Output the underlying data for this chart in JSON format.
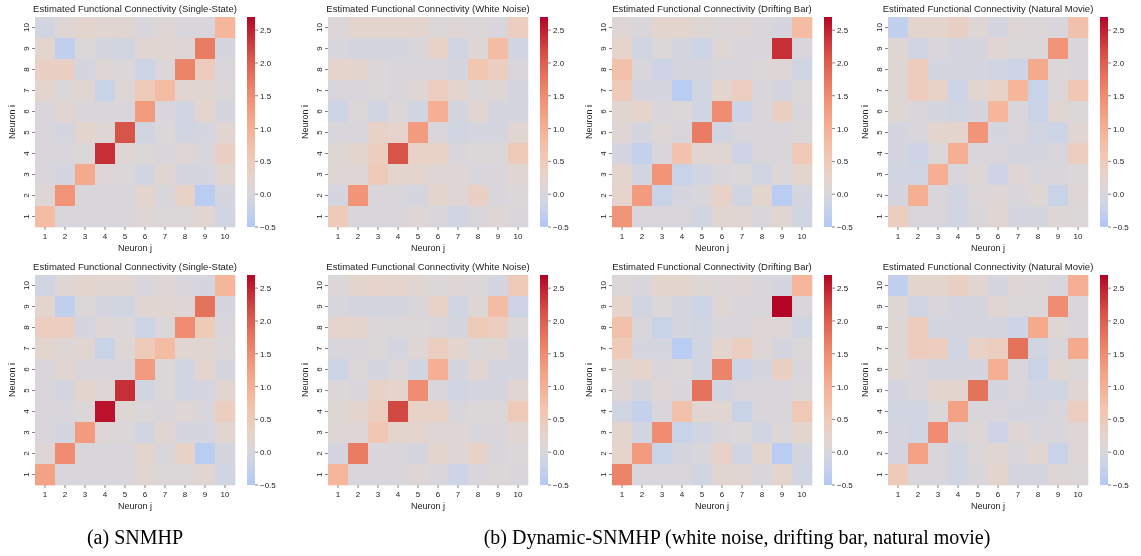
{
  "chart_data": [
    {
      "type": "heatmap",
      "title": "Estimated Functional Connectivity (Single-State)",
      "xlabel": "Neuron j",
      "ylabel": "Neuron i",
      "categories": [
        "1",
        "2",
        "3",
        "4",
        "5",
        "6",
        "7",
        "8",
        "9",
        "10"
      ],
      "y_categories": [
        "10",
        "9",
        "8",
        "7",
        "6",
        "5",
        "4",
        "3",
        "2",
        "1"
      ],
      "clim": [
        -0.5,
        2.7
      ],
      "cticks": [
        {
          "value": -0.5,
          "label": "−0.5"
        },
        {
          "value": 0,
          "label": "0.0"
        },
        0.5,
        {
          "value": 1,
          "label": "1.0"
        },
        1.5,
        {
          "value": 2,
          "label": "2.0"
        },
        2.5
      ],
      "cells": [
        [
          -0.1,
          0.1,
          0.2,
          0.15,
          0.15,
          0,
          0.1,
          0,
          0,
          0.9
        ],
        [
          0.2,
          -0.3,
          0.05,
          -0.05,
          -0.1,
          0.15,
          0.15,
          0.1,
          1.7,
          -0.05
        ],
        [
          0.35,
          0.35,
          -0.05,
          0.1,
          0.05,
          -0.15,
          0.05,
          1.6,
          0.45,
          0
        ],
        [
          0.2,
          0.05,
          0.15,
          -0.2,
          0.1,
          0.5,
          0.8,
          0.15,
          0.15,
          0.05
        ],
        [
          0,
          0.15,
          0,
          0,
          0,
          1.3,
          0,
          -0.1,
          0.2,
          -0.05
        ],
        [
          0,
          -0.05,
          0.2,
          0.1,
          2.1,
          -0.1,
          0.05,
          -0.1,
          -0.05,
          0.15
        ],
        [
          0,
          0,
          0.05,
          2.4,
          0.1,
          0.05,
          0,
          0.1,
          0,
          0.35
        ],
        [
          0,
          -0.05,
          1.1,
          0.1,
          0.05,
          -0.1,
          0.15,
          -0.05,
          -0.05,
          0.15
        ],
        [
          0.1,
          1.4,
          0,
          0,
          0,
          0.2,
          0,
          0.3,
          -0.4,
          -0.05
        ],
        [
          0.8,
          0,
          0,
          0,
          0,
          0.1,
          0.05,
          0.05,
          0.15,
          -0.1
        ]
      ]
    },
    {
      "type": "heatmap",
      "title": "Estimated Functional Connectivity (White Noise)",
      "xlabel": "Neuron j",
      "ylabel": "Neuron i",
      "categories": [
        "1",
        "2",
        "3",
        "4",
        "5",
        "6",
        "7",
        "8",
        "9",
        "10"
      ],
      "y_categories": [
        "10",
        "9",
        "8",
        "7",
        "6",
        "5",
        "4",
        "3",
        "2",
        "1"
      ],
      "clim": [
        -0.5,
        2.7
      ],
      "cticks": [
        {
          "value": -0.5,
          "label": "−0.5"
        },
        {
          "value": 0,
          "label": "0.0"
        },
        0.5,
        {
          "value": 1,
          "label": "1.0"
        },
        1.5,
        {
          "value": 2,
          "label": "2.0"
        },
        2.5
      ],
      "cells": [
        [
          0.05,
          0.2,
          0.2,
          0.2,
          0.2,
          0.05,
          0.1,
          0.05,
          0,
          0.4
        ],
        [
          0,
          -0.05,
          -0.05,
          -0.05,
          0,
          0.3,
          -0.1,
          0.1,
          0.8,
          -0.1
        ],
        [
          0.25,
          0.2,
          0.05,
          0,
          0,
          0,
          -0.05,
          0.6,
          0.4,
          0
        ],
        [
          0,
          0,
          0.05,
          0,
          0.1,
          0.4,
          0.2,
          0.05,
          0.1,
          -0.05
        ],
        [
          -0.15,
          0.05,
          -0.1,
          0.05,
          -0.1,
          1,
          -0.05,
          0.15,
          -0.05,
          -0.05
        ],
        [
          0,
          0,
          0.3,
          0.25,
          1.3,
          0,
          -0.1,
          -0.05,
          -0.05,
          0.15
        ],
        [
          0.1,
          0.2,
          0.4,
          2.1,
          0.3,
          0.3,
          0,
          0.05,
          0.05,
          0.5
        ],
        [
          0.1,
          0.1,
          0.5,
          0.2,
          0.2,
          0.1,
          0.1,
          0,
          0,
          0.15
        ],
        [
          -0.05,
          1.4,
          0,
          0,
          -0.05,
          0.2,
          0.1,
          0.35,
          0,
          0.05
        ],
        [
          0.5,
          0,
          0,
          0,
          0.1,
          0,
          -0.1,
          0,
          0.1,
          0
        ]
      ]
    },
    {
      "type": "heatmap",
      "title": "Estimated Functional Connectivity (Drifting Bar)",
      "xlabel": "Neuron j",
      "ylabel": "Neuron i",
      "categories": [
        "1",
        "2",
        "3",
        "4",
        "5",
        "6",
        "7",
        "8",
        "9",
        "10"
      ],
      "y_categories": [
        "10",
        "9",
        "8",
        "7",
        "6",
        "5",
        "4",
        "3",
        "2",
        "1"
      ],
      "clim": [
        -0.5,
        2.7
      ],
      "cticks": [
        {
          "value": -0.5,
          "label": "−0.5"
        },
        {
          "value": 0,
          "label": "0.0"
        },
        0.5,
        {
          "value": 1,
          "label": "1.0"
        },
        1.5,
        {
          "value": 2,
          "label": "2.0"
        },
        2.5
      ],
      "cells": [
        [
          0.1,
          0,
          0.2,
          0.2,
          0.1,
          0.05,
          0.1,
          0,
          -0.05,
          0.8
        ],
        [
          0.25,
          -0.1,
          0.05,
          -0.05,
          -0.15,
          0.1,
          0,
          0,
          2.4,
          0
        ],
        [
          0.7,
          0,
          -0.15,
          -0.05,
          -0.05,
          0,
          0,
          0.05,
          0.1,
          -0.1
        ],
        [
          0.5,
          -0.05,
          -0.05,
          -0.4,
          -0.1,
          0.2,
          0.4,
          0,
          -0.05,
          0.05
        ],
        [
          0.15,
          0.25,
          0,
          0.05,
          -0.1,
          1.5,
          -0.15,
          0,
          0.35,
          0
        ],
        [
          0.1,
          -0.05,
          0.1,
          0,
          1.7,
          -0.1,
          0,
          0,
          0,
          0.05
        ],
        [
          -0.05,
          -0.25,
          0,
          0.65,
          0.15,
          0.15,
          -0.15,
          0,
          0,
          0.55
        ],
        [
          0.2,
          -0.1,
          1.4,
          -0.2,
          -0.1,
          0,
          0.05,
          -0.1,
          0.05,
          0.2
        ],
        [
          0.25,
          1.3,
          -0.2,
          -0.05,
          0,
          0.3,
          -0.1,
          0.2,
          -0.4,
          -0.05
        ],
        [
          1.4,
          0,
          0,
          0,
          -0.1,
          0.15,
          0.15,
          0,
          0.15,
          -0.1
        ]
      ]
    },
    {
      "type": "heatmap",
      "title": "Estimated Functional Connectivity (Natural Movie)",
      "xlabel": "Neuron j",
      "ylabel": "Neuron i",
      "categories": [
        "1",
        "2",
        "3",
        "4",
        "5",
        "6",
        "7",
        "8",
        "9",
        "10"
      ],
      "y_categories": [
        "10",
        "9",
        "8",
        "7",
        "6",
        "5",
        "4",
        "3",
        "2",
        "1"
      ],
      "clim": [
        -0.5,
        2.7
      ],
      "cticks": [
        {
          "value": -0.5,
          "label": "−0.5"
        },
        {
          "value": 0,
          "label": "0.0"
        },
        0.5,
        {
          "value": 1,
          "label": "1.0"
        },
        1.5,
        {
          "value": 2,
          "label": "2.0"
        },
        2.5
      ],
      "cells": [
        [
          -0.3,
          0.2,
          0.2,
          0.35,
          0.1,
          -0.05,
          0.1,
          0.05,
          0,
          0.7
        ],
        [
          0.1,
          -0.1,
          0,
          -0.05,
          -0.05,
          0.15,
          0.05,
          0.05,
          1.4,
          0
        ],
        [
          0.1,
          0.45,
          -0.05,
          -0.05,
          -0.05,
          -0.1,
          -0.15,
          1.1,
          0.05,
          0
        ],
        [
          0.1,
          0.45,
          0.3,
          -0.15,
          0.15,
          0.3,
          0.9,
          -0.2,
          0.05,
          0.6
        ],
        [
          0.1,
          0,
          -0.05,
          -0.1,
          -0.05,
          0.9,
          0,
          -0.2,
          0.15,
          0.05
        ],
        [
          -0.05,
          0,
          0.2,
          0.2,
          1.4,
          -0.05,
          0,
          -0.1,
          -0.15,
          0.15
        ],
        [
          -0.05,
          -0.15,
          0.05,
          1,
          0,
          0,
          -0.05,
          -0.05,
          0,
          0.4
        ],
        [
          -0.1,
          -0.1,
          1,
          0,
          0.1,
          -0.15,
          0.1,
          0,
          0,
          0.05
        ],
        [
          -0.05,
          1,
          0,
          -0.1,
          0.05,
          0.1,
          0,
          0.1,
          -0.2,
          0.1
        ],
        [
          0.4,
          0,
          0,
          -0.1,
          0,
          0.15,
          -0.05,
          -0.05,
          0.1,
          0.05
        ]
      ]
    },
    {
      "type": "heatmap",
      "title": "Estimated Functional Connectivity (Single-State)",
      "xlabel": "Neuron j",
      "ylabel": "Neuron i",
      "categories": [
        "1",
        "2",
        "3",
        "4",
        "5",
        "6",
        "7",
        "8",
        "9",
        "10"
      ],
      "y_categories": [
        "10",
        "9",
        "8",
        "7",
        "6",
        "5",
        "4",
        "3",
        "2",
        "1"
      ],
      "clim": [
        -0.5,
        2.7
      ],
      "cticks": [
        {
          "value": -0.5,
          "label": "−0.5"
        },
        {
          "value": 0,
          "label": "0.0"
        },
        0.5,
        {
          "value": 1,
          "label": "1.0"
        },
        1.5,
        {
          "value": 2,
          "label": "2.0"
        },
        2.5
      ],
      "annotations": [
        "(a) SNMHP"
      ],
      "cells": [
        [
          -0.1,
          0.1,
          0.2,
          0.15,
          0.15,
          0,
          0.1,
          0,
          -0.05,
          0.9
        ],
        [
          0.2,
          -0.3,
          0.05,
          -0.05,
          -0.1,
          0.15,
          0.15,
          0.1,
          1.8,
          -0.05
        ],
        [
          0.4,
          0.4,
          -0.05,
          0.1,
          0.05,
          -0.15,
          0.05,
          1.5,
          0.5,
          0
        ],
        [
          0.2,
          0.1,
          0.15,
          -0.2,
          0.1,
          0.5,
          0.8,
          0.15,
          0.15,
          0.05
        ],
        [
          0,
          0.15,
          0,
          0,
          0,
          1.3,
          0.05,
          -0.1,
          0.2,
          -0.05
        ],
        [
          0,
          -0.05,
          0.2,
          0.1,
          2.4,
          -0.1,
          0.05,
          -0.1,
          -0.05,
          0.15
        ],
        [
          0,
          0,
          0.05,
          2.6,
          0.1,
          0.05,
          0,
          0.1,
          0,
          0.4
        ],
        [
          0,
          -0.05,
          1.3,
          0.1,
          0.05,
          -0.1,
          0.15,
          -0.05,
          -0.05,
          0.15
        ],
        [
          0.1,
          1.5,
          0,
          0,
          0,
          0.2,
          0,
          0.3,
          -0.4,
          -0.05
        ],
        [
          1.2,
          0,
          0,
          0,
          0,
          0.15,
          0.05,
          0.05,
          0.15,
          -0.1
        ]
      ]
    },
    {
      "type": "heatmap",
      "title": "Estimated Functional Connectivity (White Noise)",
      "xlabel": "Neuron j",
      "ylabel": "Neuron i",
      "categories": [
        "1",
        "2",
        "3",
        "4",
        "5",
        "6",
        "7",
        "8",
        "9",
        "10"
      ],
      "y_categories": [
        "10",
        "9",
        "8",
        "7",
        "6",
        "5",
        "4",
        "3",
        "2",
        "1"
      ],
      "clim": [
        -0.5,
        2.7
      ],
      "cticks": [
        {
          "value": -0.5,
          "label": "−0.5"
        },
        {
          "value": 0,
          "label": "0.0"
        },
        0.5,
        {
          "value": 1,
          "label": "1.0"
        },
        1.5,
        {
          "value": 2,
          "label": "2.0"
        },
        2.5
      ],
      "cells": [
        [
          0.05,
          0.2,
          0.25,
          0.2,
          0.15,
          0.05,
          0.1,
          0.05,
          -0.05,
          0.5
        ],
        [
          0,
          -0.05,
          -0.05,
          -0.05,
          0,
          0.3,
          -0.1,
          0.1,
          0.8,
          -0.15
        ],
        [
          0.25,
          0.2,
          0.05,
          0.05,
          0.05,
          0,
          -0.05,
          0.5,
          0.4,
          0.05
        ],
        [
          0,
          0,
          0.05,
          -0.05,
          0.1,
          0.4,
          0.2,
          0.05,
          0.1,
          -0.05
        ],
        [
          -0.15,
          0.05,
          -0.05,
          0.05,
          -0.1,
          1,
          -0.05,
          0.15,
          -0.05,
          -0.05
        ],
        [
          0.05,
          0,
          0.3,
          0.25,
          1.5,
          0,
          -0.1,
          -0.05,
          -0.05,
          0.15
        ],
        [
          0.1,
          0.2,
          0.4,
          2.2,
          0.3,
          0.3,
          0,
          0.05,
          0.05,
          0.5
        ],
        [
          0.1,
          0.1,
          0.6,
          0.2,
          0.2,
          0.1,
          0.1,
          0,
          0,
          0.15
        ],
        [
          -0.05,
          1.7,
          0,
          0,
          -0.05,
          0.2,
          0.1,
          0.3,
          0,
          0.05
        ],
        [
          0.9,
          0,
          0,
          0,
          0.1,
          0,
          -0.15,
          0,
          0.05,
          0
        ]
      ]
    },
    {
      "type": "heatmap",
      "title": "Estimated Functional Connectivity (Drifting Bar)",
      "xlabel": "Neuron j",
      "ylabel": "Neuron i",
      "categories": [
        "1",
        "2",
        "3",
        "4",
        "5",
        "6",
        "7",
        "8",
        "9",
        "10"
      ],
      "y_categories": [
        "10",
        "9",
        "8",
        "7",
        "6",
        "5",
        "4",
        "3",
        "2",
        "1"
      ],
      "clim": [
        -0.5,
        2.7
      ],
      "cticks": [
        {
          "value": -0.5,
          "label": "−0.5"
        },
        {
          "value": 0,
          "label": "0.0"
        },
        0.5,
        {
          "value": 1,
          "label": "1.0"
        },
        1.5,
        {
          "value": 2,
          "label": "2.0"
        },
        2.5
      ],
      "annotations": [
        "(b) Dynamic-SNMHP (white noise, drifting bar, natural movie)"
      ],
      "cells": [
        [
          0.05,
          0,
          0.2,
          0.2,
          0.1,
          0.05,
          0.1,
          0,
          -0.05,
          0.9
        ],
        [
          0.25,
          -0.1,
          0.05,
          -0.05,
          -0.15,
          0.1,
          0,
          0,
          2.7,
          0
        ],
        [
          0.7,
          0,
          -0.2,
          -0.05,
          -0.1,
          0,
          0,
          0.1,
          0.1,
          -0.1
        ],
        [
          0.5,
          -0.05,
          -0.05,
          -0.4,
          -0.1,
          0.2,
          0.4,
          0.1,
          -0.05,
          0.05
        ],
        [
          0.15,
          0.25,
          0,
          0.05,
          -0.1,
          1.6,
          -0.15,
          -0.05,
          0.35,
          0
        ],
        [
          0.1,
          -0.05,
          0.1,
          0,
          1.8,
          -0.1,
          0,
          0,
          0,
          0.05
        ],
        [
          -0.1,
          -0.25,
          0,
          0.7,
          0.15,
          0.15,
          -0.2,
          0,
          0,
          0.55
        ],
        [
          0.2,
          -0.1,
          1.5,
          -0.2,
          -0.1,
          0,
          0.05,
          -0.1,
          0.05,
          0.2
        ],
        [
          0.25,
          1.3,
          -0.2,
          -0.05,
          0,
          0.3,
          -0.1,
          0.2,
          -0.4,
          -0.05
        ],
        [
          1.6,
          0,
          0,
          0,
          -0.1,
          0.15,
          0.15,
          0,
          0.2,
          -0.1
        ]
      ]
    },
    {
      "type": "heatmap",
      "title": "Estimated Functional Connectivity (Natural Movie)",
      "xlabel": "Neuron j",
      "ylabel": "Neuron i",
      "categories": [
        "1",
        "2",
        "3",
        "4",
        "5",
        "6",
        "7",
        "8",
        "9",
        "10"
      ],
      "y_categories": [
        "10",
        "9",
        "8",
        "7",
        "6",
        "5",
        "4",
        "3",
        "2",
        "1"
      ],
      "clim": [
        -0.5,
        2.7
      ],
      "cticks": [
        {
          "value": -0.5,
          "label": "−0.5"
        },
        {
          "value": 0,
          "label": "0.0"
        },
        0.5,
        {
          "value": 1,
          "label": "1.0"
        },
        1.5,
        {
          "value": 2,
          "label": "2.0"
        },
        2.5
      ],
      "cells": [
        [
          -0.3,
          0.2,
          0.2,
          0.35,
          0.15,
          -0.05,
          0.1,
          0.05,
          0,
          1
        ],
        [
          0.1,
          -0.1,
          0,
          -0.05,
          -0.05,
          0.15,
          0.05,
          0.05,
          1.5,
          0
        ],
        [
          0.1,
          0.45,
          -0.05,
          -0.05,
          -0.05,
          -0.05,
          -0.15,
          1.1,
          0.1,
          0
        ],
        [
          0.1,
          0.45,
          0.4,
          -0.1,
          0.3,
          0.4,
          1.8,
          -0.1,
          0,
          1.1
        ],
        [
          0.1,
          0,
          -0.05,
          -0.05,
          -0.05,
          1,
          0,
          -0.2,
          0.15,
          0.05
        ],
        [
          -0.05,
          0,
          0.2,
          0.2,
          1.8,
          -0.05,
          0,
          -0.1,
          -0.1,
          0.15
        ],
        [
          -0.1,
          -0.1,
          0.05,
          1.2,
          0,
          0,
          -0.05,
          -0.05,
          0,
          0.4
        ],
        [
          -0.05,
          -0.1,
          1.5,
          0,
          0.1,
          -0.15,
          0.1,
          0,
          0,
          0.1
        ],
        [
          -0.05,
          1.2,
          0,
          -0.1,
          0.05,
          0.15,
          0,
          0.15,
          -0.2,
          0.1
        ],
        [
          0.5,
          0,
          0,
          -0.1,
          0,
          0.2,
          -0.05,
          -0.05,
          0.1,
          0.05
        ]
      ]
    }
  ]
}
